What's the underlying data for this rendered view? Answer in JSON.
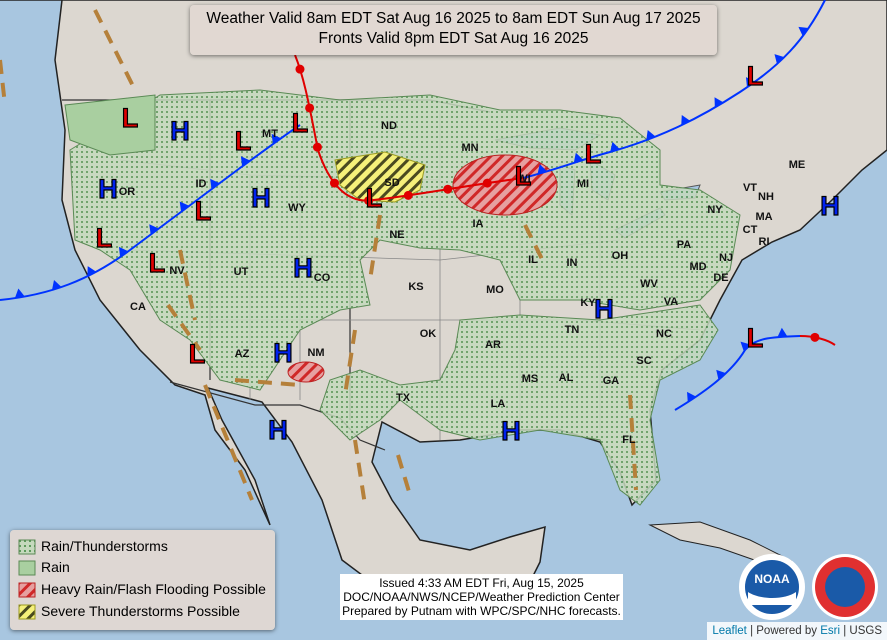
{
  "header": {
    "line1": "Weather Valid 8am EDT Sat Aug 16 2025 to 8am EDT Sun Aug 17 2025",
    "line2": "Fronts Valid 8pm EDT Sat Aug 16 2025"
  },
  "legend": {
    "items": [
      "Rain/Thunderstorms",
      "Rain",
      "Heavy Rain/Flash Flooding Possible",
      "Severe Thunderstorms Possible"
    ]
  },
  "pressure_centers": [
    "L",
    "L",
    "L",
    "L",
    "L",
    "L",
    "L",
    "L",
    "L",
    "L",
    "L",
    "L",
    "H",
    "H",
    "H",
    "H",
    "H",
    "H",
    "H",
    "H",
    "H"
  ],
  "states": [
    "MT",
    "ND",
    "MN",
    "OR",
    "ID",
    "WY",
    "SD",
    "WI",
    "MI",
    "NE",
    "IA",
    "VT",
    "NH",
    "ME",
    "MA",
    "NY",
    "CT",
    "RI",
    "PA",
    "NJ",
    "NV",
    "UT",
    "CO",
    "IL",
    "IN",
    "OH",
    "MD",
    "DE",
    "WV",
    "VA",
    "KS",
    "MO",
    "KY",
    "CA",
    "TN",
    "NC",
    "OK",
    "AR",
    "SC",
    "AZ",
    "NM",
    "MS",
    "AL",
    "GA",
    "TX",
    "LA",
    "FL"
  ],
  "issued": {
    "line1": "Issued  4:33 AM EDT Fri, Aug 15, 2025",
    "line2": "DOC/NOAA/NWS/NCEP/Weather Prediction Center",
    "line3": "Prepared by Putnam with WPC/SPC/NHC forecasts."
  },
  "logos": {
    "noaa": "NOAA"
  },
  "attribution": {
    "leaflet": "Leaflet",
    "powered": "| Powered by",
    "esri": "Esri",
    "usgs": "| USGS"
  }
}
